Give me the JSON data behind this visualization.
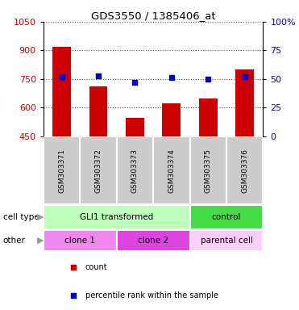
{
  "title": "GDS3550 / 1385406_at",
  "samples": [
    "GSM303371",
    "GSM303372",
    "GSM303373",
    "GSM303374",
    "GSM303375",
    "GSM303376"
  ],
  "counts": [
    920,
    710,
    545,
    625,
    650,
    800
  ],
  "percentiles": [
    52,
    53,
    47,
    51,
    50,
    52
  ],
  "ylim_left": [
    450,
    1050
  ],
  "ylim_right": [
    0,
    100
  ],
  "yticks_left": [
    450,
    600,
    750,
    900,
    1050
  ],
  "yticks_right": [
    0,
    25,
    50,
    75,
    100
  ],
  "ytick_labels_right": [
    "0",
    "25",
    "50",
    "75",
    "100%"
  ],
  "bar_color": "#cc0000",
  "dot_color": "#0000cc",
  "grid_color": "#555555",
  "cell_type_groups": [
    {
      "name": "GLI1 transformed",
      "span": [
        0,
        3
      ],
      "color": "#bbffbb"
    },
    {
      "name": "control",
      "span": [
        4,
        5
      ],
      "color": "#44dd44"
    }
  ],
  "other_groups": [
    {
      "name": "clone 1",
      "span": [
        0,
        1
      ],
      "color": "#ee88ee"
    },
    {
      "name": "clone 2",
      "span": [
        2,
        3
      ],
      "color": "#dd44dd"
    },
    {
      "name": "parental cell",
      "span": [
        4,
        5
      ],
      "color": "#ffccff"
    }
  ],
  "legend": [
    {
      "color": "#cc0000",
      "label": "count"
    },
    {
      "color": "#0000cc",
      "label": "percentile rank within the sample"
    }
  ],
  "tick_label_color_left": "#cc0000",
  "tick_label_color_right": "#0000cc",
  "bg_color": "#ffffff",
  "sample_bg": "#cccccc",
  "n_samples": 6
}
